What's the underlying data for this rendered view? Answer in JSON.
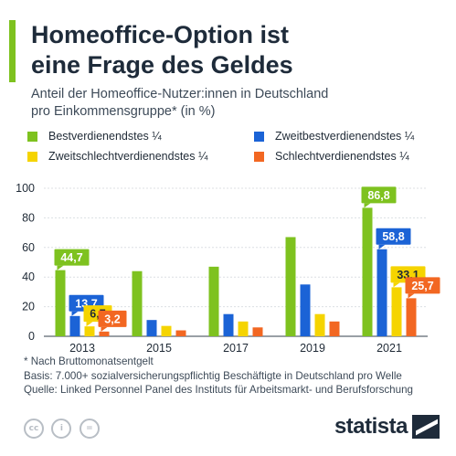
{
  "title_lines": [
    "Homeoffice-Option ist",
    "eine Frage des Geldes"
  ],
  "subtitle_lines": [
    "Anteil der Homeoffice-Nutzer:innen in Deutschland",
    "pro Einkommensgruppe* (in %)"
  ],
  "colors": {
    "accent": "#7ec21f",
    "series": [
      "#7ec21f",
      "#1b63d6",
      "#f5d400",
      "#f26722"
    ]
  },
  "chart_data": {
    "type": "bar",
    "categories": [
      "2013",
      "2015",
      "2017",
      "2019",
      "2021"
    ],
    "ylim": [
      0,
      100
    ],
    "yticks": [
      0,
      20,
      40,
      60,
      80,
      100
    ],
    "grid": true,
    "legend_position": "top",
    "series": [
      {
        "name": "Bestverdienendstes ¼",
        "values": [
          44.7,
          44,
          47,
          67,
          86.8
        ]
      },
      {
        "name": "Zweitbestverdienendstes ¼",
        "values": [
          13.7,
          11,
          15,
          35,
          58.8
        ]
      },
      {
        "name": "Zweitschlechtverdienendstes ¼",
        "values": [
          6.7,
          7,
          10,
          15,
          33.1
        ]
      },
      {
        "name": "Schlechtverdienendstes ¼",
        "values": [
          3.2,
          4,
          6,
          10,
          25.7
        ]
      }
    ],
    "labeled_points": [
      {
        "category": 0,
        "series": 0,
        "label": "44,7"
      },
      {
        "category": 0,
        "series": 1,
        "label": "13,7"
      },
      {
        "category": 0,
        "series": 2,
        "label": "6,7"
      },
      {
        "category": 0,
        "series": 3,
        "label": "3,2"
      },
      {
        "category": 4,
        "series": 0,
        "label": "86,8"
      },
      {
        "category": 4,
        "series": 1,
        "label": "58,8"
      },
      {
        "category": 4,
        "series": 2,
        "label": "33,1"
      },
      {
        "category": 4,
        "series": 3,
        "label": "25,7"
      }
    ]
  },
  "footnotes": [
    "* Nach Bruttomonatsentgelt",
    "Basis: 7.000+ sozialversicherungspflichtig Beschäftigte in Deutschland pro Welle",
    "Quelle: Linked Personnel Panel des Instituts für Arbeitsmarkt- und Berufsforschung"
  ],
  "license_icons": [
    {
      "icon": "cc-icon",
      "glyph": "cc"
    },
    {
      "icon": "attribution-icon",
      "glyph": "i"
    },
    {
      "icon": "noderivs-icon",
      "glyph": "="
    }
  ],
  "brand": {
    "name": "statista"
  }
}
